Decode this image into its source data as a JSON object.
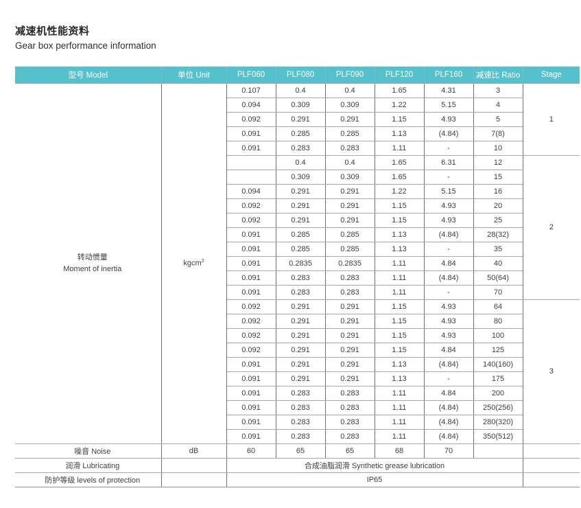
{
  "page": {
    "title_zh": "减速机性能资料",
    "title_en": "Gear box performance information"
  },
  "table": {
    "header": {
      "model": "型号 Model",
      "unit": "单位 Unit",
      "columns": [
        "PLF060",
        "PLF080",
        "PLF090",
        "PLF120",
        "PLF160"
      ],
      "ratio": "减速比 Ratio",
      "stage": "Stage"
    },
    "inertia": {
      "label_zh": "转动惯量",
      "label_en": "Moment of inertia",
      "unit": "kgcm",
      "unit_sup": "2"
    },
    "stages": [
      {
        "stage": "1",
        "rows": [
          [
            "0.107",
            "0.4",
            "0.4",
            "1.65",
            "4.31",
            "3"
          ],
          [
            "0.094",
            "0.309",
            "0.309",
            "1.22",
            "5.15",
            "4"
          ],
          [
            "0.092",
            "0.291",
            "0.291",
            "1.15",
            "4.93",
            "5"
          ],
          [
            "0.091",
            "0.285",
            "0.285",
            "1.13",
            "(4.84)",
            "7(8)"
          ],
          [
            "0.091",
            "0.283",
            "0.283",
            "1.11",
            "-",
            "10"
          ]
        ]
      },
      {
        "stage": "2",
        "rows": [
          [
            "",
            "0.4",
            "0.4",
            "1.65",
            "6.31",
            "12"
          ],
          [
            "",
            "0.309",
            "0.309",
            "1.65",
            "-",
            "15"
          ],
          [
            "0.094",
            "0.291",
            "0.291",
            "1.22",
            "5.15",
            "16"
          ],
          [
            "0.092",
            "0.291",
            "0.291",
            "1.15",
            "4.93",
            "20"
          ],
          [
            "0.092",
            "0.291",
            "0.291",
            "1.15",
            "4.93",
            "25"
          ],
          [
            "0.091",
            "0.285",
            "0.285",
            "1.13",
            "(4.84)",
            "28(32)"
          ],
          [
            "0.091",
            "0.285",
            "0.285",
            "1.13",
            "-",
            "35"
          ],
          [
            "0.091",
            "0.2835",
            "0.2835",
            "1.11",
            "4.84",
            "40"
          ],
          [
            "0.091",
            "0.283",
            "0.283",
            "1.11",
            "(4.84)",
            "50(64)"
          ],
          [
            "0.091",
            "0.283",
            "0.283",
            "1.11",
            "-",
            "70"
          ]
        ]
      },
      {
        "stage": "3",
        "rows": [
          [
            "0.092",
            "0.291",
            "0.291",
            "1.15",
            "4.93",
            "64"
          ],
          [
            "0.092",
            "0.291",
            "0.291",
            "1.15",
            "4.93",
            "80"
          ],
          [
            "0.092",
            "0.291",
            "0.291",
            "1.15",
            "4.93",
            "100"
          ],
          [
            "0.092",
            "0.291",
            "0.291",
            "1.15",
            "4.84",
            "125"
          ],
          [
            "0.091",
            "0.291",
            "0.291",
            "1.13",
            "(4.84)",
            "140(160)"
          ],
          [
            "0.091",
            "0.291",
            "0.291",
            "1.13",
            "-",
            "175"
          ],
          [
            "0.091",
            "0.283",
            "0.283",
            "1.11",
            "4.84",
            "200"
          ],
          [
            "0.091",
            "0.283",
            "0.283",
            "1.11",
            "(4.84)",
            "250(256)"
          ],
          [
            "0.091",
            "0.283",
            "0.283",
            "1.11",
            "(4.84)",
            "280(320)"
          ],
          [
            "0.091",
            "0.283",
            "0.283",
            "1.11",
            "(4.84)",
            "350(512)"
          ]
        ]
      }
    ],
    "noise": {
      "label": "噪音 Noise",
      "unit": "dB",
      "values": [
        "60",
        "65",
        "65",
        "68",
        "70"
      ]
    },
    "lubricating": {
      "label": "润滑 Lubricating",
      "value": "合成油脂润滑 Synthetic grease lubrication"
    },
    "protection": {
      "label": "防护等级 levels of protection",
      "value": "IP65"
    }
  },
  "colors": {
    "header_bg": "#55c1cd",
    "header_text": "#ffffff",
    "row_alt_bg": "#e9f2f6",
    "border_vertical": "#6a7176",
    "border_horizontal": "#a2a9ae",
    "text": "#3a3e41"
  }
}
